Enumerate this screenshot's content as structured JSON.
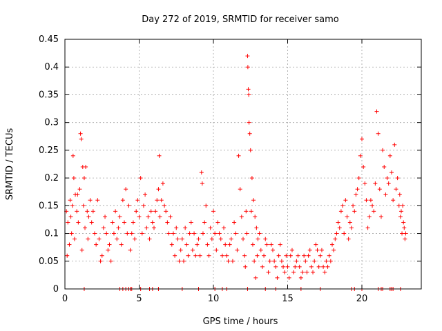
{
  "chart_data": {
    "type": "scatter",
    "title": "Day 272 of 2019, SRMTID for receiver samo",
    "xlabel": "GPS time / hours",
    "ylabel": "SRMTID / TECUs",
    "xlim": [
      0,
      24
    ],
    "ylim": [
      0,
      0.45
    ],
    "xticks": [
      0,
      5,
      10,
      15,
      20
    ],
    "xtick_labels": [
      "0",
      "5",
      "10",
      "15",
      "20"
    ],
    "yticks": [
      0,
      0.05,
      0.1,
      0.15,
      0.2,
      0.25,
      0.3,
      0.35,
      0.4,
      0.45
    ],
    "ytick_labels": [
      "0",
      "0.05",
      "0.1",
      "0.15",
      "0.2",
      "0.25",
      "0.3",
      "0.35",
      "0.4",
      "0.45"
    ],
    "grid": true,
    "marker": "+",
    "series": [
      {
        "name": "SRMTID",
        "color": "#ff0000",
        "points": [
          [
            0.1,
            0.14
          ],
          [
            0.2,
            0.12
          ],
          [
            0.3,
            0.08
          ],
          [
            0.35,
            0.16
          ],
          [
            0.4,
            0.13
          ],
          [
            0.5,
            0.15
          ],
          [
            0.55,
            0.24
          ],
          [
            0.6,
            0.2
          ],
          [
            0.7,
            0.17
          ],
          [
            0.8,
            0.14
          ],
          [
            0.9,
            0.12
          ],
          [
            1.0,
            0.18
          ],
          [
            1.05,
            0.28
          ],
          [
            1.1,
            0.27
          ],
          [
            1.2,
            0.22
          ],
          [
            1.25,
            0.15
          ],
          [
            1.3,
            0.2
          ],
          [
            1.4,
            0.22
          ],
          [
            1.5,
            0.14
          ],
          [
            1.6,
            0.13
          ],
          [
            1.8,
            0.12
          ],
          [
            2.0,
            0.1
          ],
          [
            2.2,
            0.16
          ],
          [
            2.3,
            0.09
          ],
          [
            2.5,
            0.06
          ],
          [
            2.6,
            0.11
          ],
          [
            2.8,
            0.1
          ],
          [
            3.0,
            0.08
          ],
          [
            3.2,
            0.12
          ],
          [
            3.4,
            0.14
          ],
          [
            3.5,
            0.09
          ],
          [
            3.7,
            0.13
          ],
          [
            3.9,
            0.16
          ],
          [
            4.1,
            0.18
          ],
          [
            4.2,
            0.1
          ],
          [
            4.4,
            0.07
          ],
          [
            4.6,
            0.12
          ],
          [
            4.8,
            0.14
          ],
          [
            5.0,
            0.13
          ],
          [
            5.1,
            0.2
          ],
          [
            5.3,
            0.15
          ],
          [
            5.5,
            0.11
          ],
          [
            5.7,
            0.09
          ],
          [
            5.9,
            0.12
          ],
          [
            6.1,
            0.14
          ],
          [
            6.3,
            0.18
          ],
          [
            6.35,
            0.24
          ],
          [
            6.5,
            0.16
          ],
          [
            6.7,
            0.15
          ],
          [
            6.9,
            0.12
          ],
          [
            7.0,
            0.1
          ],
          [
            7.2,
            0.08
          ],
          [
            7.4,
            0.06
          ],
          [
            7.6,
            0.09
          ],
          [
            7.8,
            0.07
          ],
          [
            8.0,
            0.05
          ],
          [
            8.2,
            0.08
          ],
          [
            8.4,
            0.1
          ],
          [
            8.6,
            0.07
          ],
          [
            8.8,
            0.06
          ],
          [
            9.0,
            0.09
          ],
          [
            9.2,
            0.21
          ],
          [
            9.25,
            0.19
          ],
          [
            9.4,
            0.12
          ],
          [
            9.6,
            0.08
          ],
          [
            9.8,
            0.11
          ],
          [
            10.0,
            0.14
          ],
          [
            10.2,
            0.07
          ],
          [
            10.4,
            0.1
          ],
          [
            10.6,
            0.06
          ],
          [
            10.8,
            0.08
          ],
          [
            11.0,
            0.05
          ],
          [
            11.2,
            0.09
          ],
          [
            11.4,
            0.12
          ],
          [
            11.6,
            0.07
          ],
          [
            11.7,
            0.24
          ],
          [
            11.8,
            0.18
          ],
          [
            12.0,
            0.09
          ],
          [
            12.1,
            0.06
          ],
          [
            12.2,
            0.14
          ],
          [
            12.3,
            0.42
          ],
          [
            12.32,
            0.4
          ],
          [
            12.35,
            0.36
          ],
          [
            12.38,
            0.35
          ],
          [
            12.4,
            0.3
          ],
          [
            12.45,
            0.28
          ],
          [
            12.5,
            0.25
          ],
          [
            12.6,
            0.2
          ],
          [
            12.7,
            0.16
          ],
          [
            12.8,
            0.13
          ],
          [
            12.9,
            0.11
          ],
          [
            13.0,
            0.09
          ],
          [
            13.2,
            0.07
          ],
          [
            13.4,
            0.06
          ],
          [
            13.6,
            0.08
          ],
          [
            13.8,
            0.05
          ],
          [
            14.0,
            0.07
          ],
          [
            14.2,
            0.04
          ],
          [
            14.4,
            0.06
          ],
          [
            14.6,
            0.05
          ],
          [
            14.8,
            0.03
          ],
          [
            15.0,
            0.04
          ],
          [
            15.2,
            0.06
          ],
          [
            15.4,
            0.03
          ],
          [
            15.6,
            0.05
          ],
          [
            15.8,
            0.04
          ],
          [
            16.0,
            0.03
          ],
          [
            16.2,
            0.05
          ],
          [
            16.4,
            0.06
          ],
          [
            16.6,
            0.04
          ],
          [
            16.8,
            0.05
          ],
          [
            17.0,
            0.07
          ],
          [
            17.2,
            0.06
          ],
          [
            17.4,
            0.04
          ],
          [
            17.6,
            0.05
          ],
          [
            17.8,
            0.06
          ],
          [
            18.0,
            0.08
          ],
          [
            18.2,
            0.09
          ],
          [
            18.4,
            0.12
          ],
          [
            18.6,
            0.14
          ],
          [
            18.8,
            0.1
          ],
          [
            19.0,
            0.13
          ],
          [
            19.2,
            0.12
          ],
          [
            19.4,
            0.15
          ],
          [
            19.6,
            0.17
          ],
          [
            19.8,
            0.2
          ],
          [
            19.9,
            0.24
          ],
          [
            20.0,
            0.27
          ],
          [
            20.1,
            0.22
          ],
          [
            20.3,
            0.16
          ],
          [
            20.5,
            0.13
          ],
          [
            20.7,
            0.15
          ],
          [
            20.9,
            0.19
          ],
          [
            21.0,
            0.32
          ],
          [
            21.1,
            0.28
          ],
          [
            21.2,
            0.18
          ],
          [
            21.4,
            0.25
          ],
          [
            21.5,
            0.22
          ],
          [
            21.7,
            0.2
          ],
          [
            21.9,
            0.24
          ],
          [
            22.0,
            0.21
          ],
          [
            22.2,
            0.26
          ],
          [
            22.3,
            0.18
          ],
          [
            22.5,
            0.15
          ],
          [
            22.6,
            0.13
          ],
          [
            22.7,
            0.1
          ],
          [
            22.8,
            0.12
          ],
          [
            22.9,
            0.09
          ],
          [
            0.15,
            0.06
          ],
          [
            0.45,
            0.1
          ],
          [
            0.65,
            0.09
          ],
          [
            0.85,
            0.17
          ],
          [
            1.15,
            0.07
          ],
          [
            1.35,
            0.11
          ],
          [
            1.55,
            0.09
          ],
          [
            1.7,
            0.16
          ],
          [
            1.9,
            0.14
          ],
          [
            2.1,
            0.08
          ],
          [
            2.4,
            0.05
          ],
          [
            2.7,
            0.13
          ],
          [
            2.9,
            0.07
          ],
          [
            3.1,
            0.05
          ],
          [
            3.3,
            0.1
          ],
          [
            3.6,
            0.11
          ],
          [
            3.8,
            0.08
          ],
          [
            4.0,
            0.12
          ],
          [
            4.3,
            0.15
          ],
          [
            4.5,
            0.1
          ],
          [
            4.7,
            0.09
          ],
          [
            4.9,
            0.16
          ],
          [
            5.2,
            0.1
          ],
          [
            5.4,
            0.17
          ],
          [
            5.6,
            0.13
          ],
          [
            5.8,
            0.14
          ],
          [
            6.0,
            0.11
          ],
          [
            6.2,
            0.16
          ],
          [
            6.4,
            0.13
          ],
          [
            6.6,
            0.19
          ],
          [
            6.8,
            0.14
          ],
          [
            7.1,
            0.13
          ],
          [
            7.3,
            0.1
          ],
          [
            7.5,
            0.11
          ],
          [
            7.7,
            0.05
          ],
          [
            7.9,
            0.09
          ],
          [
            8.1,
            0.11
          ],
          [
            8.3,
            0.06
          ],
          [
            8.5,
            0.12
          ],
          [
            8.7,
            0.1
          ],
          [
            8.9,
            0.08
          ],
          [
            9.1,
            0.06
          ],
          [
            9.3,
            0.1
          ],
          [
            9.5,
            0.15
          ],
          [
            9.7,
            0.06
          ],
          [
            9.9,
            0.09
          ],
          [
            10.1,
            0.1
          ],
          [
            10.3,
            0.12
          ],
          [
            10.5,
            0.09
          ],
          [
            10.7,
            0.11
          ],
          [
            10.9,
            0.06
          ],
          [
            11.1,
            0.08
          ],
          [
            11.3,
            0.05
          ],
          [
            11.5,
            0.1
          ],
          [
            11.9,
            0.13
          ],
          [
            12.15,
            0.04
          ],
          [
            12.25,
            0.1
          ],
          [
            12.55,
            0.14
          ],
          [
            12.65,
            0.08
          ],
          [
            12.75,
            0.05
          ],
          [
            12.85,
            0.02
          ],
          [
            12.95,
            0.06
          ],
          [
            13.1,
            0.1
          ],
          [
            13.3,
            0.04
          ],
          [
            13.5,
            0.09
          ],
          [
            13.7,
            0.03
          ],
          [
            13.9,
            0.08
          ],
          [
            14.1,
            0.05
          ],
          [
            14.3,
            0.02
          ],
          [
            14.5,
            0.08
          ],
          [
            14.7,
            0.04
          ],
          [
            14.9,
            0.06
          ],
          [
            15.1,
            0.02
          ],
          [
            15.3,
            0.07
          ],
          [
            15.5,
            0.04
          ],
          [
            15.7,
            0.06
          ],
          [
            15.9,
            0.02
          ],
          [
            16.1,
            0.06
          ],
          [
            16.3,
            0.03
          ],
          [
            16.5,
            0.07
          ],
          [
            16.7,
            0.03
          ],
          [
            16.9,
            0.08
          ],
          [
            17.1,
            0.04
          ],
          [
            17.3,
            0.07
          ],
          [
            17.5,
            0.03
          ],
          [
            17.7,
            0.04
          ],
          [
            17.9,
            0.05
          ],
          [
            18.1,
            0.07
          ],
          [
            18.3,
            0.1
          ],
          [
            18.5,
            0.11
          ],
          [
            18.7,
            0.15
          ],
          [
            18.9,
            0.16
          ],
          [
            19.1,
            0.09
          ],
          [
            19.3,
            0.11
          ],
          [
            19.5,
            0.14
          ],
          [
            19.7,
            0.18
          ],
          [
            20.2,
            0.19
          ],
          [
            20.4,
            0.11
          ],
          [
            20.6,
            0.16
          ],
          [
            20.8,
            0.14
          ],
          [
            21.3,
            0.13
          ],
          [
            21.6,
            0.17
          ],
          [
            21.8,
            0.19
          ],
          [
            22.1,
            0.16
          ],
          [
            22.4,
            0.2
          ],
          [
            22.55,
            0.17
          ],
          [
            22.65,
            0.14
          ],
          [
            22.75,
            0.15
          ],
          [
            22.85,
            0.11
          ],
          [
            22.95,
            0.1
          ]
        ],
        "zero_points": [
          1.3,
          3.7,
          3.9,
          4.1,
          4.3,
          4.4,
          4.5,
          5.1,
          5.7,
          5.9,
          6.3,
          7.9,
          9.0,
          10.1,
          10.6,
          10.9,
          12.3,
          13.5,
          14.2,
          15.9,
          17.2,
          19.3,
          19.5,
          20.0,
          21.1,
          21.3,
          21.4,
          21.9,
          22.0,
          22.1,
          22.6
        ]
      }
    ]
  }
}
